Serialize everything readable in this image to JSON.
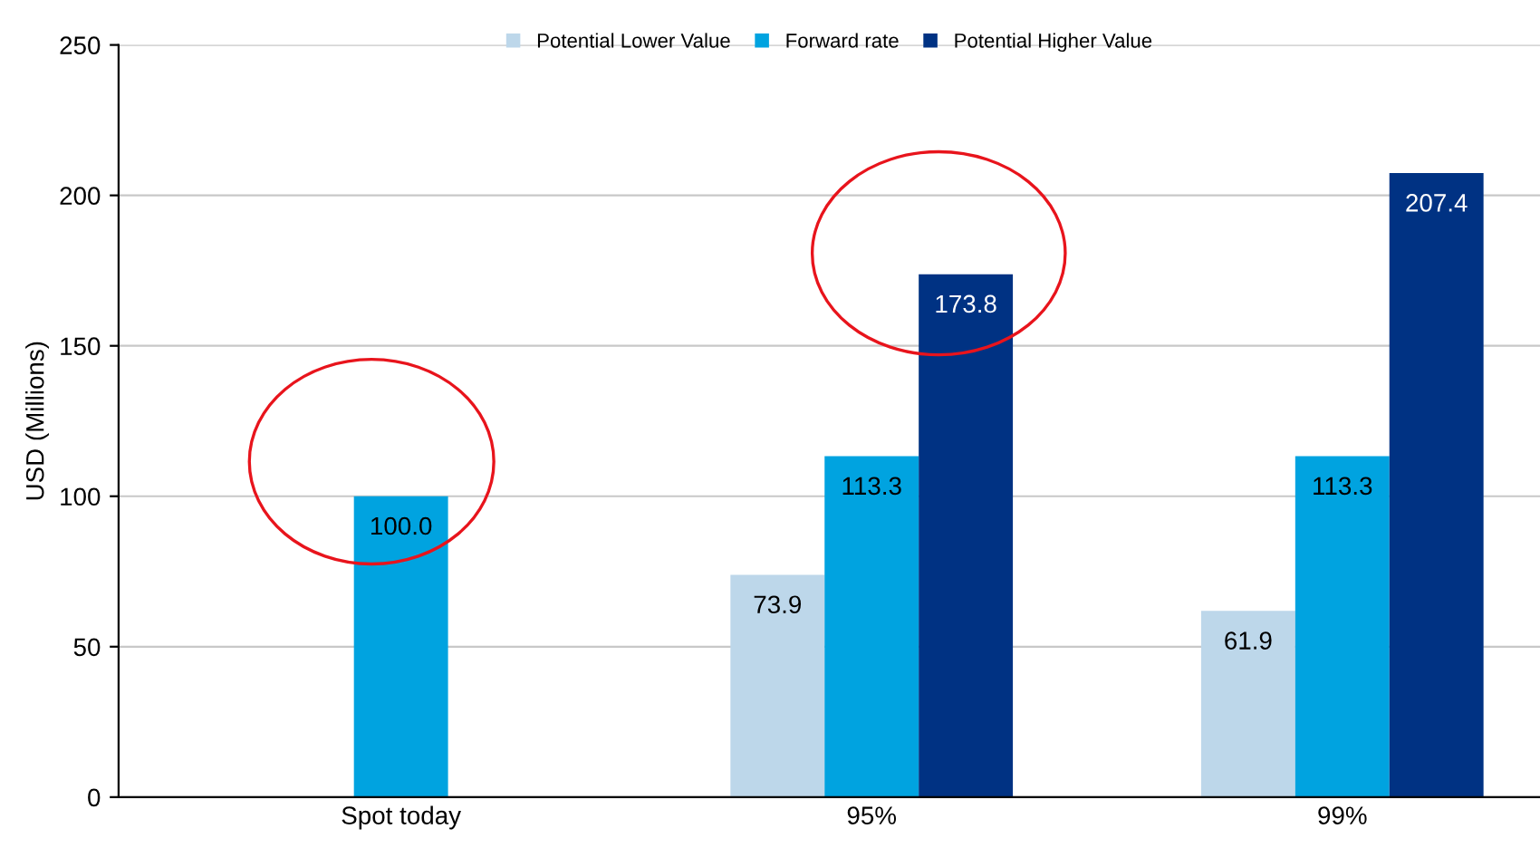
{
  "chart_data": {
    "type": "bar",
    "ylabel": "USD (Millions)",
    "categories": [
      "Spot today",
      "95%",
      "99%"
    ],
    "series": [
      {
        "name": "Potential Lower Value",
        "color": "#bdd7ea",
        "values": [
          null,
          73.9,
          61.9
        ],
        "value_labels": [
          null,
          "73.9",
          "61.9"
        ]
      },
      {
        "name": "Forward rate",
        "color": "#00a3e0",
        "values": [
          100,
          113.3,
          113.3
        ],
        "value_labels": [
          "100.0",
          "113.3",
          "113.3"
        ]
      },
      {
        "name": "Potential Higher Value",
        "color": "#003283",
        "values": [
          null,
          173.8,
          207.4
        ],
        "value_labels": [
          null,
          "173.8",
          "207.4"
        ]
      }
    ],
    "ylim": [
      0,
      250
    ],
    "yticks": [
      0,
      50,
      100,
      150,
      200,
      250
    ],
    "grid": "y",
    "legend": "top"
  }
}
